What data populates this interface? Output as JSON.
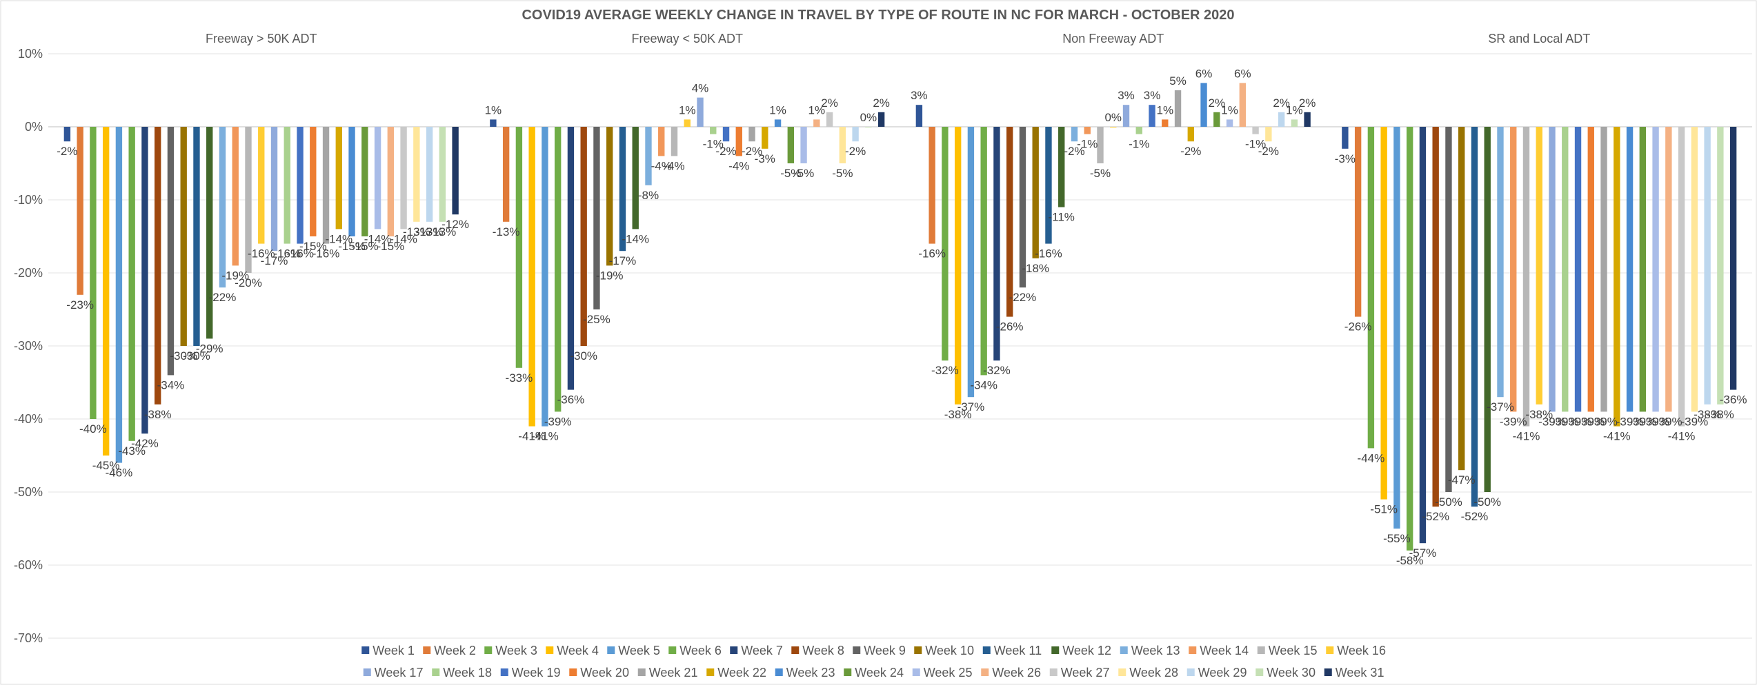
{
  "chart_data": {
    "type": "bar",
    "title": "COVID19 AVERAGE WEEKLY CHANGE IN TRAVEL BY TYPE OF ROUTE IN NC FOR MARCH - OCTOBER 2020",
    "categories": [
      "Freeway > 50K ADT",
      "Freeway < 50K ADT",
      "Non Freeway ADT",
      "SR and Local ADT"
    ],
    "ylim": [
      -75,
      10
    ],
    "yticks": [
      10,
      0,
      -10,
      -20,
      -30,
      -40,
      -50,
      -60,
      -70
    ],
    "ytick_labels": [
      "10%",
      "0%",
      "-10%",
      "-20%",
      "-30%",
      "-40%",
      "-50%",
      "-60%",
      "-70%"
    ],
    "grid": true,
    "legend_position": "bottom",
    "series": [
      {
        "name": "Week 1",
        "color": "#2f5597",
        "values": [
          -2,
          1,
          3,
          -3
        ]
      },
      {
        "name": "Week 2",
        "color": "#e07b39",
        "values": [
          -23,
          -13,
          -16,
          -26
        ]
      },
      {
        "name": "Week 3",
        "color": "#70ad47",
        "values": [
          -40,
          -33,
          -32,
          -44
        ]
      },
      {
        "name": "Week 4",
        "color": "#ffc000",
        "values": [
          -45,
          -41,
          -38,
          -51
        ]
      },
      {
        "name": "Week 5",
        "color": "#5b9bd5",
        "values": [
          -46,
          -41,
          -37,
          -55
        ]
      },
      {
        "name": "Week 6",
        "color": "#70ad47",
        "values": [
          -43,
          -39,
          -34,
          -58
        ]
      },
      {
        "name": "Week 7",
        "color": "#264478",
        "values": [
          -42,
          -36,
          -32,
          -57
        ]
      },
      {
        "name": "Week 8",
        "color": "#9e480e",
        "values": [
          -38,
          -30,
          -26,
          -52
        ]
      },
      {
        "name": "Week 9",
        "color": "#636363",
        "values": [
          -34,
          -25,
          -22,
          -50
        ]
      },
      {
        "name": "Week 10",
        "color": "#997300",
        "values": [
          -30,
          -19,
          -18,
          -47
        ]
      },
      {
        "name": "Week 11",
        "color": "#255e91",
        "values": [
          -30,
          -17,
          -16,
          -52
        ]
      },
      {
        "name": "Week 12",
        "color": "#43682b",
        "values": [
          -29,
          -14,
          -11,
          -50
        ]
      },
      {
        "name": "Week 13",
        "color": "#7cafdd",
        "values": [
          -22,
          -8,
          -2,
          -37
        ]
      },
      {
        "name": "Week 14",
        "color": "#f1975a",
        "values": [
          -19,
          -4,
          -1,
          -39
        ]
      },
      {
        "name": "Week 15",
        "color": "#b7b7b7",
        "values": [
          -20,
          -4,
          -5,
          -41
        ]
      },
      {
        "name": "Week 16",
        "color": "#ffcd33",
        "values": [
          -16,
          1,
          0,
          -38
        ]
      },
      {
        "name": "Week 17",
        "color": "#8faadc",
        "values": [
          -17,
          4,
          3,
          -39
        ]
      },
      {
        "name": "Week 18",
        "color": "#a9d18e",
        "values": [
          -16,
          -1,
          -1,
          -39
        ]
      },
      {
        "name": "Week 19",
        "color": "#4472c4",
        "values": [
          -16,
          -2,
          3,
          -39
        ]
      },
      {
        "name": "Week 20",
        "color": "#ed7d31",
        "values": [
          -15,
          -4,
          1,
          -39
        ]
      },
      {
        "name": "Week 21",
        "color": "#a5a5a5",
        "values": [
          -16,
          -2,
          5,
          -39
        ]
      },
      {
        "name": "Week 22",
        "color": "#d6a800",
        "values": [
          -14,
          -3,
          -2,
          -41
        ]
      },
      {
        "name": "Week 23",
        "color": "#4a8cd3",
        "values": [
          -15,
          1,
          6,
          -39
        ]
      },
      {
        "name": "Week 24",
        "color": "#6a9a3a",
        "values": [
          -15,
          -5,
          2,
          -39
        ]
      },
      {
        "name": "Week 25",
        "color": "#a9bce8",
        "values": [
          -14,
          -5,
          1,
          -39
        ]
      },
      {
        "name": "Week 26",
        "color": "#f4b183",
        "values": [
          -15,
          1,
          6,
          -39
        ]
      },
      {
        "name": "Week 27",
        "color": "#c9c9c9",
        "values": [
          -14,
          2,
          -1,
          -41
        ]
      },
      {
        "name": "Week 28",
        "color": "#ffe699",
        "values": [
          -13,
          -5,
          -2,
          -39
        ]
      },
      {
        "name": "Week 29",
        "color": "#bdd7ee",
        "values": [
          -13,
          -2,
          2,
          -38
        ]
      },
      {
        "name": "Week 30",
        "color": "#c5e0b4",
        "values": [
          -13,
          0,
          1,
          -38
        ]
      },
      {
        "name": "Week 31",
        "color": "#203864",
        "values": [
          -12,
          2,
          2,
          -36
        ]
      }
    ]
  }
}
